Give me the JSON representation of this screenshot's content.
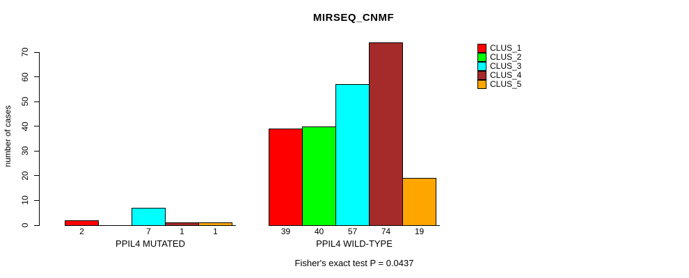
{
  "title": "MIRSEQ_CNMF",
  "y_axis": {
    "label": "number of cases",
    "ticks": [
      0,
      10,
      20,
      30,
      40,
      50,
      60,
      70
    ]
  },
  "legend": {
    "items": [
      {
        "label": "CLUS_1",
        "color": "#FF0000"
      },
      {
        "label": "CLUS_2",
        "color": "#00FF00"
      },
      {
        "label": "CLUS_3",
        "color": "#00FFFF"
      },
      {
        "label": "CLUS_4",
        "color": "#A52A2A"
      },
      {
        "label": "CLUS_5",
        "color": "#FFA500"
      }
    ]
  },
  "footer": {
    "text": "Fisher's exact test P = 0.0437"
  },
  "chart_data": {
    "type": "bar",
    "title": "MIRSEQ_CNMF",
    "xlabel": "",
    "ylabel": "number of cases",
    "ylim": [
      0,
      74
    ],
    "y_ticks": [
      0,
      10,
      20,
      30,
      40,
      50,
      60,
      70
    ],
    "grid": false,
    "legend_position": "top-right-outside",
    "series_names": [
      "CLUS_1",
      "CLUS_2",
      "CLUS_3",
      "CLUS_4",
      "CLUS_5"
    ],
    "series_colors": [
      "#FF0000",
      "#00FF00",
      "#00FFFF",
      "#A52A2A",
      "#FFA500"
    ],
    "groups": [
      {
        "label": "PPIL4 MUTATED",
        "values": [
          2,
          0,
          7,
          1,
          1
        ],
        "value_labels": [
          "2",
          "",
          "7",
          "1",
          "1"
        ]
      },
      {
        "label": "PPIL4 WILD-TYPE",
        "values": [
          39,
          40,
          57,
          74,
          19
        ],
        "value_labels": [
          "39",
          "40",
          "57",
          "74",
          "19"
        ]
      }
    ],
    "annotation": "Fisher's exact test P = 0.0437"
  }
}
